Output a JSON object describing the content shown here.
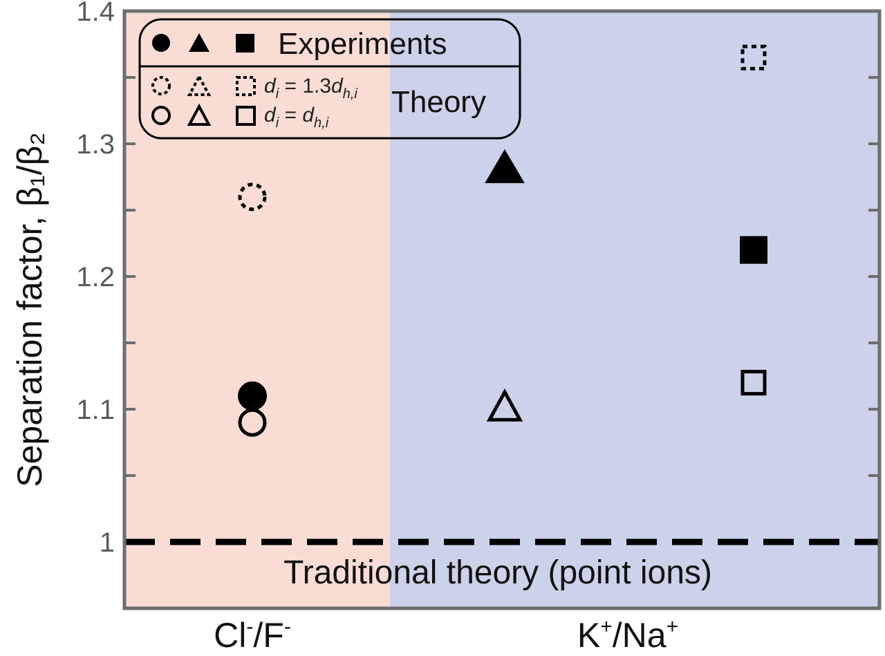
{
  "chart_data": {
    "type": "scatter",
    "ylabel": "Separation factor, β₁/β₂",
    "ylim": [
      0.95,
      1.4
    ],
    "yticks": [
      1,
      1.1,
      1.2,
      1.3,
      1.4
    ],
    "y_tick_labels": [
      "1",
      "1.1",
      "1.2",
      "1.3",
      "1.4"
    ],
    "grid": false,
    "legend_position": "top-left",
    "categories": [
      {
        "label_main": "Cl",
        "label_sup": "-",
        "label_sep": "/",
        "label_main2": "F",
        "label_sup2": "-",
        "background": "#f9ddd4"
      },
      {
        "label_main": "K",
        "label_sup": "+",
        "label_sep": "/",
        "label_main2": "Na",
        "label_sup2": "+",
        "background": "#cbd2ea"
      }
    ],
    "reference_line": {
      "y": 1.0,
      "label": "Traditional theory (point ions)",
      "style": "dashed"
    },
    "series": [
      {
        "name": "Experiments",
        "marker_style": "filled",
        "points": [
          {
            "category": "Cl-/F-",
            "marker": "circle",
            "y": 1.11
          },
          {
            "category": "K+/Na+",
            "marker": "triangle",
            "y": 1.28
          },
          {
            "category": "K+/Na+",
            "marker": "square",
            "y": 1.22
          }
        ]
      },
      {
        "name": "Theory, di = 1.3dh,i",
        "marker_style": "dotted",
        "points": [
          {
            "category": "Cl-/F-",
            "marker": "circle",
            "y": 1.26
          },
          {
            "category": "K+/Na+",
            "marker": "triangle",
            "y": 1.28
          },
          {
            "category": "K+/Na+",
            "marker": "square",
            "y": 1.365
          }
        ]
      },
      {
        "name": "Theory, di = dh,i",
        "marker_style": "open",
        "points": [
          {
            "category": "Cl-/F-",
            "marker": "circle",
            "y": 1.09
          },
          {
            "category": "K+/Na+",
            "marker": "triangle",
            "y": 1.1
          },
          {
            "category": "K+/Na+",
            "marker": "square",
            "y": 1.12
          }
        ]
      }
    ],
    "legend": {
      "experiments_label": "Experiments",
      "theory_label": "Theory",
      "row1_d": "d",
      "row1_d_sub": "i",
      "row1_eq": " = 1.3",
      "row1_dh": "d",
      "row1_dh_sub": "h,i",
      "row2_d": "d",
      "row2_d_sub": "i",
      "row2_eq": " = ",
      "row2_dh": "d",
      "row2_dh_sub": "h,i"
    },
    "colors": {
      "left_bg": "#f9ddd4",
      "right_bg": "#cbd2ea",
      "frame": "#6e6e6e",
      "marker": "#000000"
    }
  }
}
